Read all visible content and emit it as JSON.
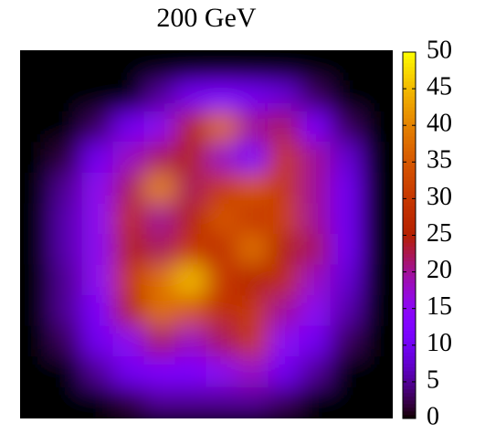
{
  "chart_data": {
    "type": "heatmap",
    "title": "200 GeV",
    "colormap": "gnuplot",
    "zlim": [
      0,
      50
    ],
    "cbticks": [
      0,
      5,
      10,
      15,
      20,
      25,
      30,
      35,
      40,
      45,
      50
    ],
    "z": [
      [
        0,
        0,
        0,
        0,
        0,
        0,
        0,
        0,
        0,
        0,
        0,
        0
      ],
      [
        0,
        0,
        0,
        0,
        5,
        10,
        12,
        10,
        8,
        3,
        0,
        0
      ],
      [
        0,
        0,
        3,
        10,
        15,
        25,
        38,
        20,
        22,
        12,
        3,
        0
      ],
      [
        0,
        2,
        10,
        18,
        22,
        25,
        18,
        12,
        30,
        20,
        8,
        0
      ],
      [
        0,
        5,
        15,
        22,
        40,
        22,
        30,
        35,
        30,
        20,
        10,
        0
      ],
      [
        0,
        6,
        15,
        28,
        20,
        25,
        35,
        30,
        32,
        20,
        10,
        0
      ],
      [
        0,
        6,
        15,
        25,
        22,
        30,
        28,
        38,
        25,
        22,
        10,
        0
      ],
      [
        0,
        5,
        15,
        30,
        38,
        45,
        30,
        25,
        28,
        18,
        8,
        0
      ],
      [
        0,
        5,
        12,
        25,
        38,
        35,
        28,
        30,
        20,
        15,
        6,
        0
      ],
      [
        0,
        3,
        10,
        15,
        22,
        18,
        22,
        30,
        15,
        10,
        3,
        0
      ],
      [
        0,
        0,
        5,
        10,
        12,
        12,
        15,
        18,
        10,
        5,
        0,
        0
      ],
      [
        0,
        0,
        0,
        2,
        5,
        5,
        5,
        5,
        3,
        0,
        0,
        0
      ]
    ]
  }
}
